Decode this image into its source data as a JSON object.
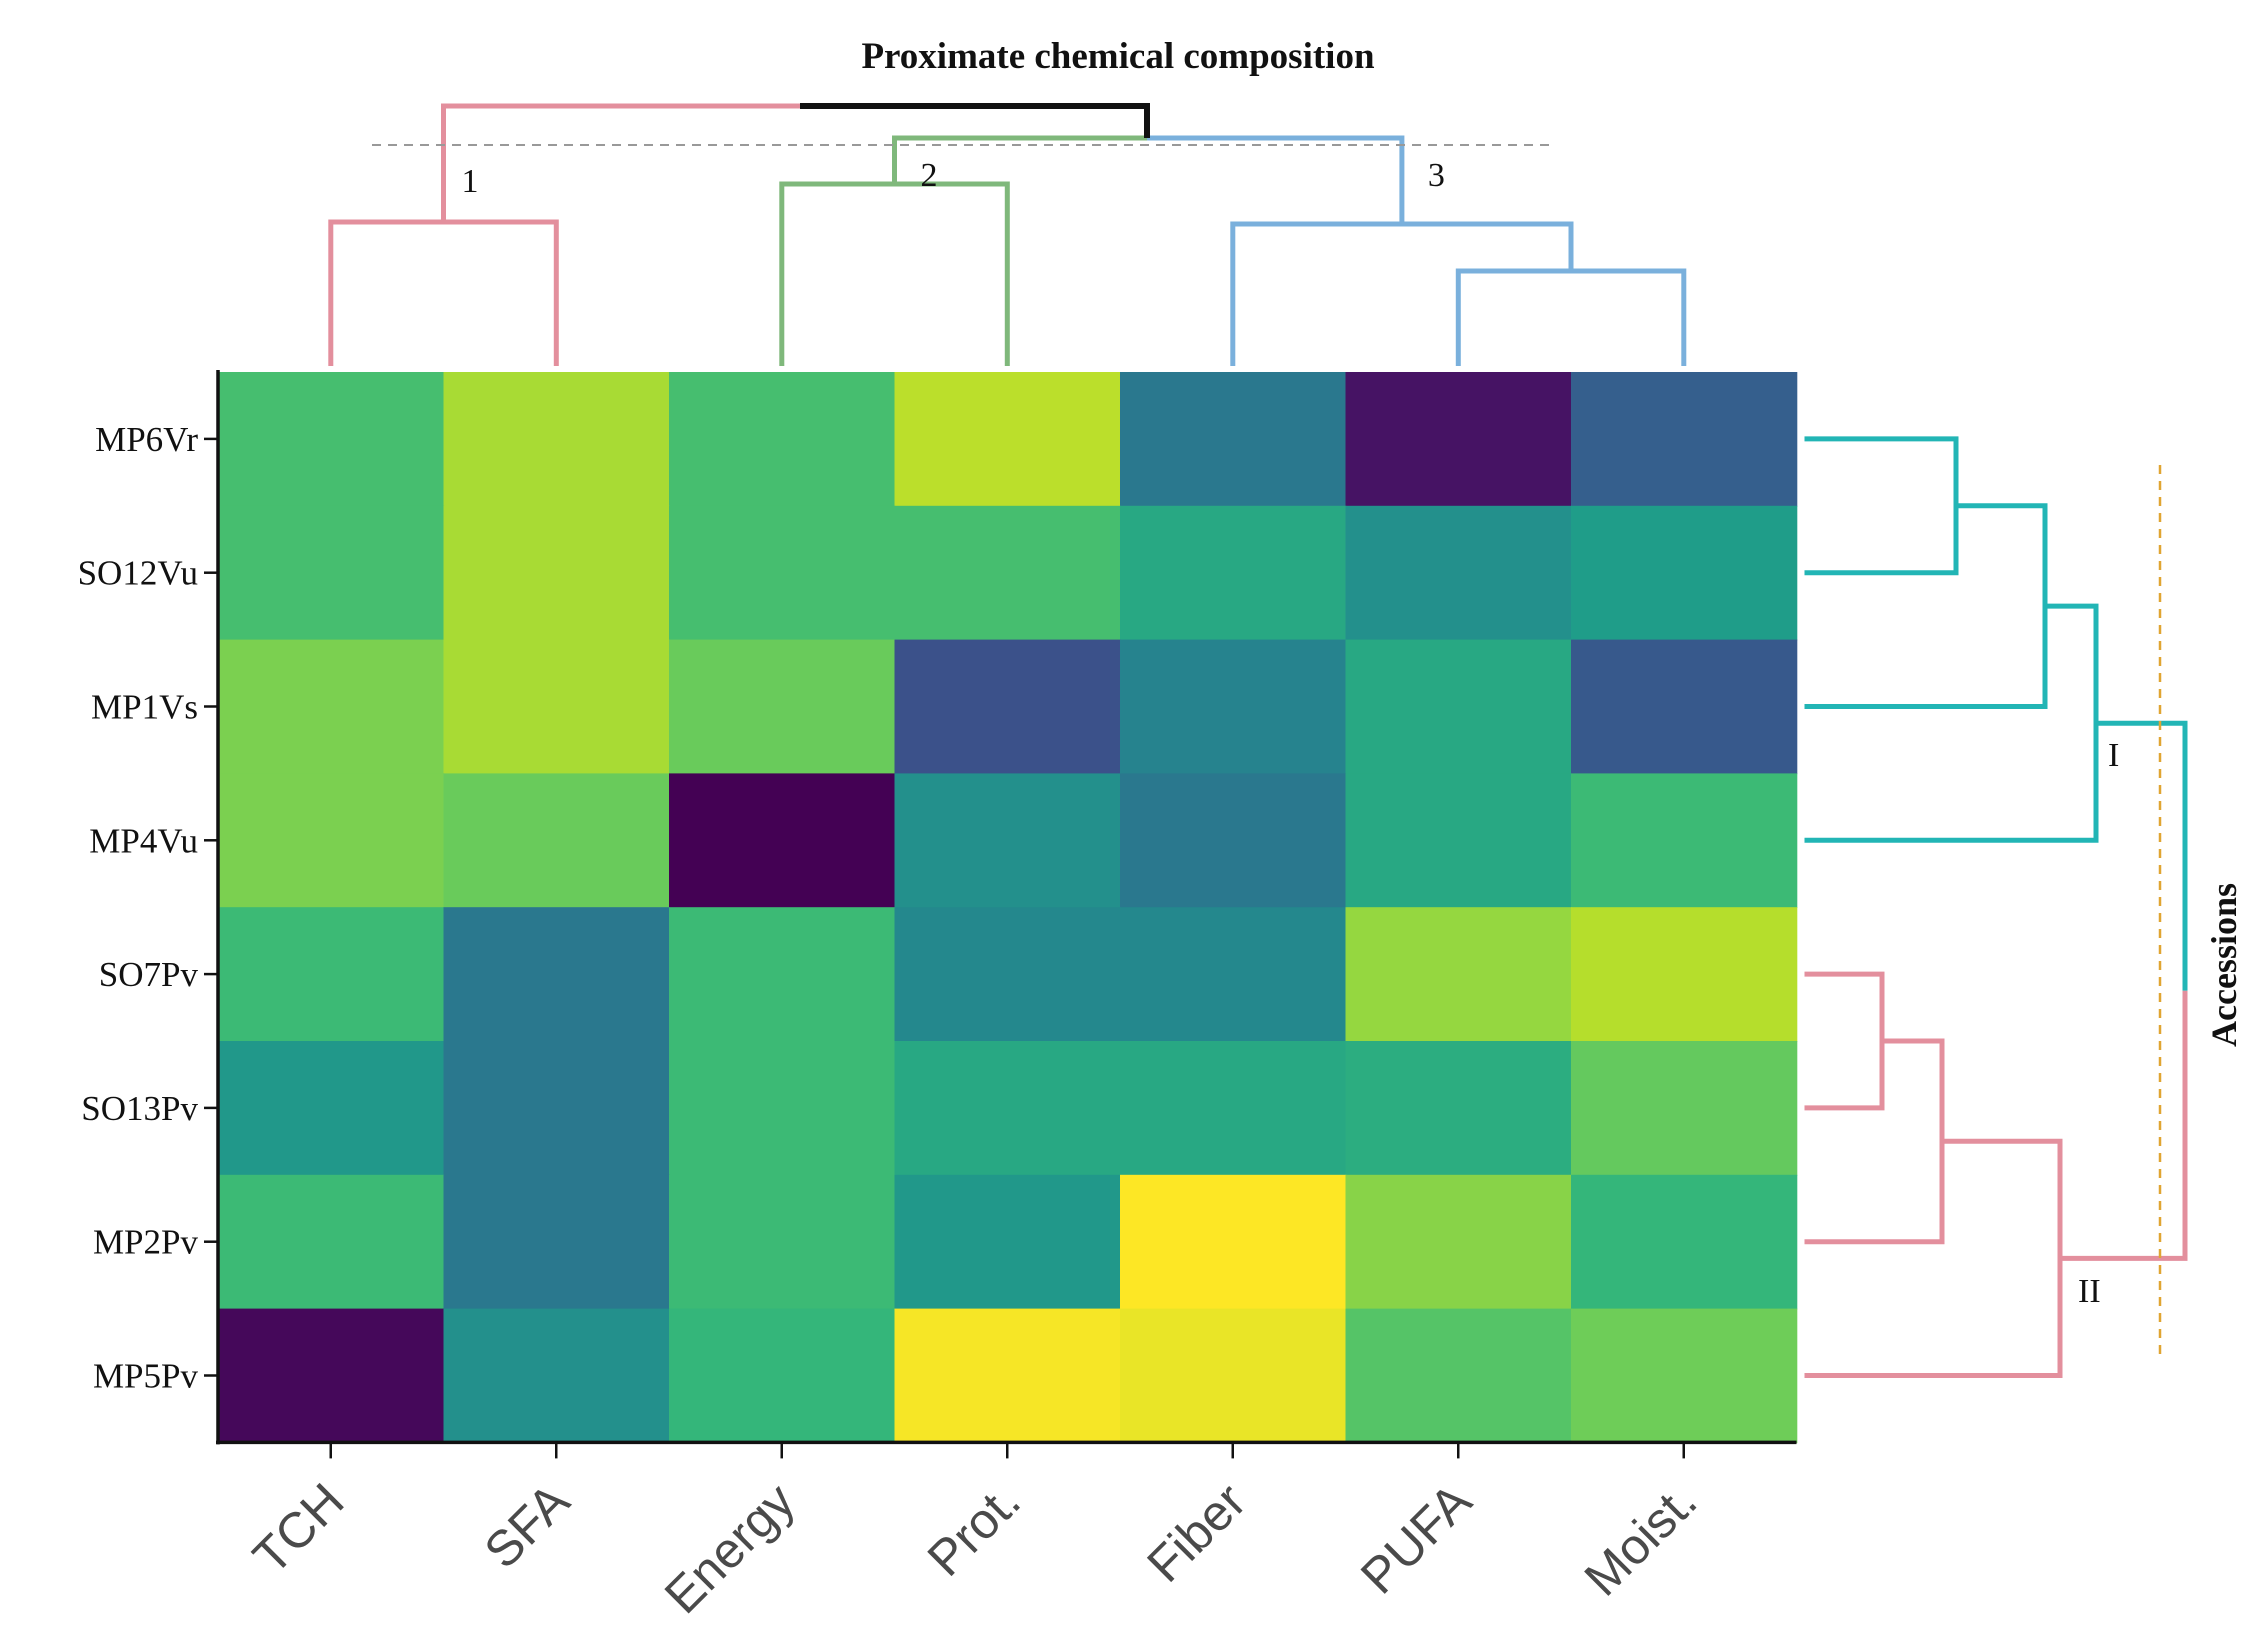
{
  "chart_data": {
    "type": "heatmap",
    "title": "Proximate chemical composition",
    "right_axis_label": "Accessions",
    "columns": [
      "TCH",
      "SFA",
      "Energy",
      "Prot.",
      "Fiber",
      "PUFA",
      "Moist."
    ],
    "rows": [
      "MP6Vr",
      "SO12Vu",
      "MP1Vs",
      "MP4Vu",
      "SO7Pv",
      "SO13Pv",
      "MP2Pv",
      "MP5Pv"
    ],
    "value_range": [
      0,
      1
    ],
    "colormap": "viridis",
    "values": [
      [
        0.7,
        0.87,
        0.7,
        0.9,
        0.4,
        0.05,
        0.3
      ],
      [
        0.7,
        0.87,
        0.7,
        0.7,
        0.6,
        0.5,
        0.55
      ],
      [
        0.8,
        0.87,
        0.77,
        0.25,
        0.45,
        0.6,
        0.28
      ],
      [
        0.8,
        0.77,
        0.0,
        0.5,
        0.4,
        0.6,
        0.68
      ],
      [
        0.68,
        0.4,
        0.68,
        0.47,
        0.47,
        0.84,
        0.89
      ],
      [
        0.53,
        0.4,
        0.68,
        0.6,
        0.6,
        0.62,
        0.76
      ],
      [
        0.68,
        0.4,
        0.68,
        0.53,
        1.0,
        0.82,
        0.66
      ],
      [
        0.02,
        0.5,
        0.66,
        0.99,
        0.97,
        0.73,
        0.78
      ]
    ],
    "column_clusters": [
      {
        "label": "1",
        "members": [
          "TCH",
          "SFA"
        ],
        "color": "#e38f9d"
      },
      {
        "label": "2",
        "members": [
          "Energy",
          "Prot."
        ],
        "color": "#7fb87b"
      },
      {
        "label": "3",
        "members": [
          "Fiber",
          "PUFA",
          "Moist."
        ],
        "color": "#7ab0dc"
      }
    ],
    "row_clusters": [
      {
        "label": "I",
        "members": [
          "MP6Vr",
          "SO12Vu",
          "MP1Vs",
          "MP4Vu"
        ],
        "color": "#22b5b5"
      },
      {
        "label": "II",
        "members": [
          "SO7Pv",
          "SO13Pv",
          "MP2Pv",
          "MP5Pv"
        ],
        "color": "#e38f9d"
      }
    ],
    "dendrogram_root_color": "#111111",
    "cut_line_color_top": "#999999",
    "cut_line_color_right": "#e0a532"
  }
}
